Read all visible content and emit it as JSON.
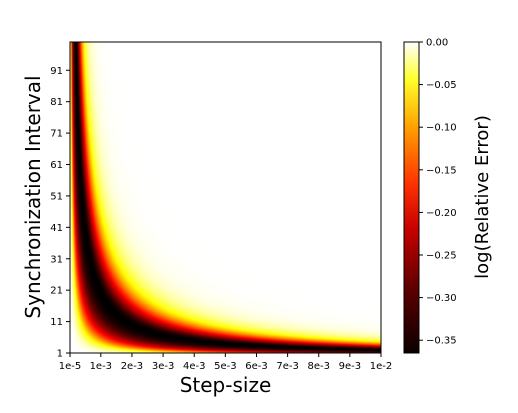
{
  "chart_data": {
    "type": "heatmap",
    "title": "",
    "xlabel": "Step-size",
    "ylabel": "Synchronization Interval",
    "x_tick_labels": [
      "1e-5",
      "1e-3",
      "2e-3",
      "3e-3",
      "4e-3",
      "5e-3",
      "6e-3",
      "7e-3",
      "8e-3",
      "9e-3",
      "1e-2"
    ],
    "y_tick_labels": [
      "1",
      "11",
      "21",
      "31",
      "41",
      "51",
      "61",
      "71",
      "81",
      "91"
    ],
    "xlim": [
      1e-05,
      0.01
    ],
    "ylim": [
      1,
      100
    ],
    "y_ticks": [
      1,
      11,
      21,
      31,
      41,
      51,
      61,
      71,
      81,
      91
    ],
    "colormap": "hot",
    "colorbar": {
      "label": "log(Relative Error)",
      "range": [
        -0.365,
        0.0
      ],
      "tick_values": [
        0.0,
        -0.05,
        -0.1,
        -0.15,
        -0.2,
        -0.25,
        -0.3,
        -0.35
      ],
      "tick_labels": [
        "0.00",
        "−0.05",
        "−0.10",
        "−0.15",
        "−0.20",
        "−0.25",
        "−0.30",
        "−0.35"
      ]
    },
    "valley": {
      "description_relation": "product",
      "product_constant": 0.0205,
      "min_value": -0.365
    },
    "grid": false
  }
}
